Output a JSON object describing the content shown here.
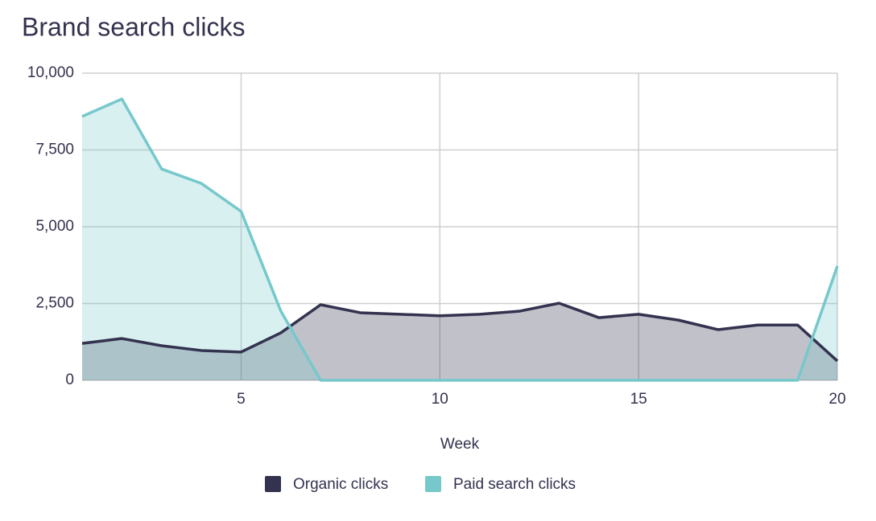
{
  "chart_data": {
    "type": "area",
    "title": "Brand search clicks",
    "x_label": "Week",
    "x": [
      1,
      2,
      3,
      4,
      5,
      6,
      7,
      8,
      9,
      10,
      11,
      12,
      13,
      14,
      15,
      16,
      17,
      18,
      19,
      20
    ],
    "series": [
      {
        "name": "Organic clicks",
        "color": "#33324f",
        "values": [
          1200,
          1360,
          1125,
          970,
          920,
          1545,
          2460,
          2200,
          2150,
          2100,
          2150,
          2250,
          2510,
          2040,
          2150,
          1960,
          1650,
          1800,
          1800,
          630
        ]
      },
      {
        "name": "Paid search clicks",
        "color": "#76c8cb",
        "values": [
          8590,
          9160,
          6880,
          6410,
          5500,
          2250,
          0,
          0,
          0,
          0,
          0,
          0,
          0,
          0,
          0,
          0,
          0,
          0,
          0,
          3720
        ]
      }
    ],
    "xlim": [
      1,
      20
    ],
    "xticks": [
      5,
      10,
      15,
      20
    ],
    "ylim": [
      0,
      10000
    ],
    "yticks": [
      0,
      {
        "value": 2500,
        "label": "2,500"
      },
      {
        "value": 5000,
        "label": "5,000"
      },
      {
        "value": 7500,
        "label": "7,500"
      },
      {
        "value": 10000,
        "label": "10,000"
      }
    ],
    "grid": true,
    "legend": "bottom"
  }
}
